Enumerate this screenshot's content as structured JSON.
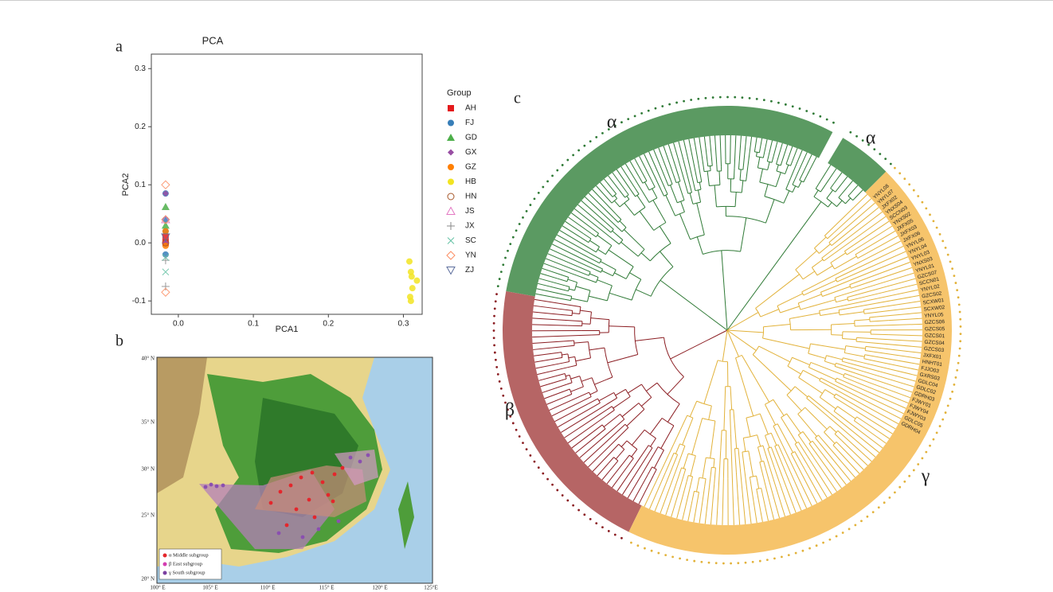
{
  "panel_labels": [
    "a",
    "b",
    "c"
  ],
  "chart_data": {
    "type": "scatter",
    "title": "PCA",
    "x_label": "PCA1",
    "y_label": "PCA2",
    "legend_title": "Group",
    "xlim": [
      -0.036,
      0.325
    ],
    "ylim": [
      -0.123,
      0.325
    ],
    "xticks": [
      {
        "value": 0,
        "label": "0.0"
      },
      0.1,
      0.2,
      0.3
    ],
    "yticks": [
      -0.1,
      {
        "value": 0,
        "label": "0.0"
      },
      0.1,
      0.2,
      0.3
    ],
    "series": [
      {
        "name": "AH",
        "color": "#e41a1c",
        "marker": "square",
        "x": [
          -0.017,
          -0.017
        ],
        "y": [
          0.0,
          0.01
        ]
      },
      {
        "name": "FJ",
        "color": "#377eb8",
        "marker": "circle",
        "x": [
          -0.017,
          -0.017,
          -0.017,
          -0.017
        ],
        "y": [
          0.085,
          0.04,
          0.02,
          -0.02
        ]
      },
      {
        "name": "GD",
        "color": "#4daf4a",
        "marker": "triangle",
        "x": [
          -0.017,
          -0.017
        ],
        "y": [
          0.062,
          0.03
        ]
      },
      {
        "name": "GX",
        "color": "#984ea3",
        "marker": "diamond",
        "x": [
          -0.017,
          -0.017
        ],
        "y": [
          0.085,
          0.0
        ]
      },
      {
        "name": "GZ",
        "color": "#ff7f00",
        "marker": "circle",
        "x": [
          -0.017,
          -0.017
        ],
        "y": [
          0.02,
          -0.005
        ]
      },
      {
        "name": "HB",
        "color": "#f2e422",
        "marker": "circle",
        "x": [
          0.308,
          0.31,
          0.318,
          0.312,
          0.309,
          0.31,
          0.311
        ],
        "y": [
          -0.032,
          -0.05,
          -0.065,
          -0.078,
          -0.093,
          -0.1,
          -0.058
        ]
      },
      {
        "name": "HN",
        "color": "#a65628",
        "marker": "open-circle",
        "x": [
          -0.017
        ],
        "y": [
          0.0
        ]
      },
      {
        "name": "JS",
        "color": "#e377c2",
        "marker": "open-triangle",
        "x": [
          -0.017
        ],
        "y": [
          0.04
        ]
      },
      {
        "name": "JX",
        "color": "#888888",
        "marker": "plus",
        "x": [
          -0.017,
          -0.017
        ],
        "y": [
          -0.075,
          -0.03
        ]
      },
      {
        "name": "SC",
        "color": "#66c2a5",
        "marker": "cross",
        "x": [
          -0.017,
          -0.017
        ],
        "y": [
          -0.05,
          -0.025
        ]
      },
      {
        "name": "YN",
        "color": "#fc8d62",
        "marker": "open-diamond",
        "x": [
          -0.017,
          -0.017,
          -0.017
        ],
        "y": [
          0.1,
          -0.085,
          0.04
        ]
      },
      {
        "name": "ZJ",
        "color": "#5c6d9c",
        "marker": "open-down-triangle",
        "x": [
          -0.017
        ],
        "y": [
          0.01
        ]
      }
    ]
  },
  "map": {
    "lat_ticks": [
      "40° N",
      "35° N",
      "30° N",
      "25° N",
      "20° N"
    ],
    "lon_ticks": [
      "100° E",
      "105° E",
      "110° E",
      "115° E",
      "120° E",
      "125°E"
    ],
    "legend": [
      "α Middle subgroup",
      "β East subgroup",
      "γ South subgroup"
    ]
  },
  "tree": {
    "clades": [
      "α",
      "α",
      "β",
      "γ"
    ],
    "leaves": [
      "YNYL08",
      "YNYL07",
      "JXFX02",
      "YNXS04",
      "SCCN03",
      "YNXS02",
      "JXFX05",
      "JXFX03",
      "JXFX06",
      "YNYL06",
      "YNYL04",
      "YNYL03",
      "YNXS03",
      "YNYL01",
      "GZCS07",
      "SCCN01",
      "YNYL02",
      "GZCS02",
      "SCXW01",
      "SCXW02",
      "YNYL05",
      "GZCS06",
      "GZCS05",
      "GZCS01",
      "GZCS04",
      "GZCS03",
      "JXFX01",
      "HNHT01",
      "FJJO03",
      "GXRS03",
      "GDLC04",
      "GDLC02",
      "GDRH03",
      "FJWY01",
      "FJWY04",
      "FJWY03",
      "GDLC05",
      "GDRH04"
    ]
  }
}
